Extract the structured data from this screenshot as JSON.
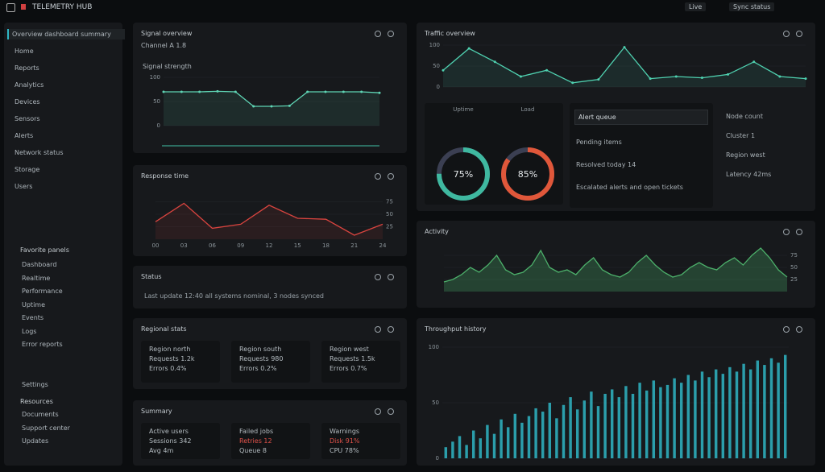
{
  "header": {
    "title": "TELEMETRY HUB",
    "actions": [
      "Live",
      "Sync status"
    ]
  },
  "sidebar": {
    "items": [
      "Overview dashboard summary",
      "Home",
      "Reports",
      "Analytics",
      "Devices",
      "Sensors",
      "Alerts",
      "Network status",
      "Storage",
      "Users"
    ],
    "groups": [
      {
        "title": "Favorite panels",
        "items": [
          "Dashboard",
          "Realtime",
          "Performance",
          "Uptime",
          "Events",
          "Logs",
          "Error reports"
        ]
      }
    ],
    "settings": "Settings",
    "resources": {
      "title": "Resources",
      "items": [
        "Documents",
        "Support center",
        "Updates"
      ]
    }
  },
  "panels": [
    {
      "title": "Signal overview",
      "subtitle": "Channel A 1.8",
      "chart_title": "Signal strength",
      "chart": {
        "type": "line",
        "color": "#5fd4b4",
        "values": [
          70,
          70,
          70,
          71,
          70,
          40,
          40,
          41,
          70,
          70,
          70,
          70,
          68
        ],
        "ylim": [
          0,
          100
        ],
        "yticks": [
          0,
          50,
          100
        ]
      }
    },
    {
      "title": "Response time",
      "chart": {
        "type": "line",
        "color": "#d9443f",
        "categories": [
          "00",
          "03",
          "06",
          "09",
          "12",
          "15",
          "18",
          "21",
          "24"
        ],
        "values": [
          35,
          72,
          22,
          30,
          68,
          42,
          40,
          8,
          30
        ],
        "ylim": [
          0,
          100
        ],
        "yticks": [
          25,
          50,
          75
        ]
      }
    },
    {
      "title": "Status",
      "text": "Last update 12:40 all systems nominal, 3 nodes synced"
    },
    {
      "title": "Regional stats",
      "cards": [
        {
          "lines": [
            "Region north",
            "Requests 1.2k",
            "Errors 0.4%"
          ]
        },
        {
          "lines": [
            "Region south",
            "Requests 980",
            "Errors 0.2%"
          ]
        },
        {
          "lines": [
            "Region west",
            "Requests 1.5k",
            "Errors 0.7%"
          ]
        }
      ]
    },
    {
      "title": "Summary",
      "cards": [
        {
          "lines": [
            "Active users",
            "Sessions 342",
            "Avg 4m"
          ]
        },
        {
          "lines": [
            "Failed jobs",
            "Retries 12",
            "Queue 8"
          ]
        },
        {
          "lines": [
            "Warnings",
            "Disk 91%",
            "CPU 78%"
          ]
        }
      ]
    },
    {
      "title": "Traffic overview",
      "chart": {
        "type": "line",
        "color": "#4fd1b0",
        "values": [
          40,
          92,
          60,
          25,
          40,
          10,
          18,
          95,
          20,
          25,
          22,
          30,
          60,
          25,
          20
        ],
        "ylim": [
          0,
          100
        ],
        "yticks": [
          0,
          50,
          100
        ]
      },
      "donuts": [
        {
          "label": "Uptime",
          "value": 75,
          "value_label": "75%",
          "color": "#3fb8a0"
        },
        {
          "label": "Load",
          "value": 85,
          "value_label": "85%",
          "color": "#e0573a"
        }
      ],
      "queue": {
        "title": "Alert queue",
        "lines": [
          "Pending items",
          "Resolved today 14",
          "Escalated alerts and open tickets"
        ]
      },
      "side": {
        "lines": [
          "Node count",
          "Cluster 1",
          "Region west",
          "Latency 42ms"
        ]
      }
    },
    {
      "title": "Activity",
      "chart": {
        "type": "area",
        "color": "#4caf6a",
        "values": [
          20,
          25,
          35,
          50,
          40,
          55,
          75,
          45,
          35,
          40,
          55,
          85,
          50,
          40,
          45,
          35,
          55,
          70,
          45,
          35,
          30,
          40,
          60,
          75,
          55,
          40,
          30,
          35,
          50,
          60,
          50,
          45,
          60,
          70,
          55,
          75,
          90,
          70,
          45,
          30
        ],
        "ylim": [
          0,
          100
        ],
        "yticks": [
          25,
          50,
          75
        ]
      }
    },
    {
      "title": "Throughput history",
      "chart": {
        "type": "bar",
        "color": "#2fb6c4",
        "values": [
          10,
          15,
          20,
          12,
          25,
          18,
          30,
          22,
          35,
          28,
          40,
          32,
          38,
          45,
          42,
          50,
          36,
          48,
          55,
          44,
          52,
          60,
          47,
          58,
          62,
          55,
          65,
          58,
          68,
          61,
          70,
          64,
          66,
          72,
          68,
          75,
          70,
          78,
          73,
          80,
          76,
          82,
          78,
          85,
          80,
          88,
          84,
          90,
          86,
          93
        ],
        "ylim": [
          0,
          100
        ],
        "yticks": [
          0,
          50,
          100
        ]
      }
    }
  ]
}
